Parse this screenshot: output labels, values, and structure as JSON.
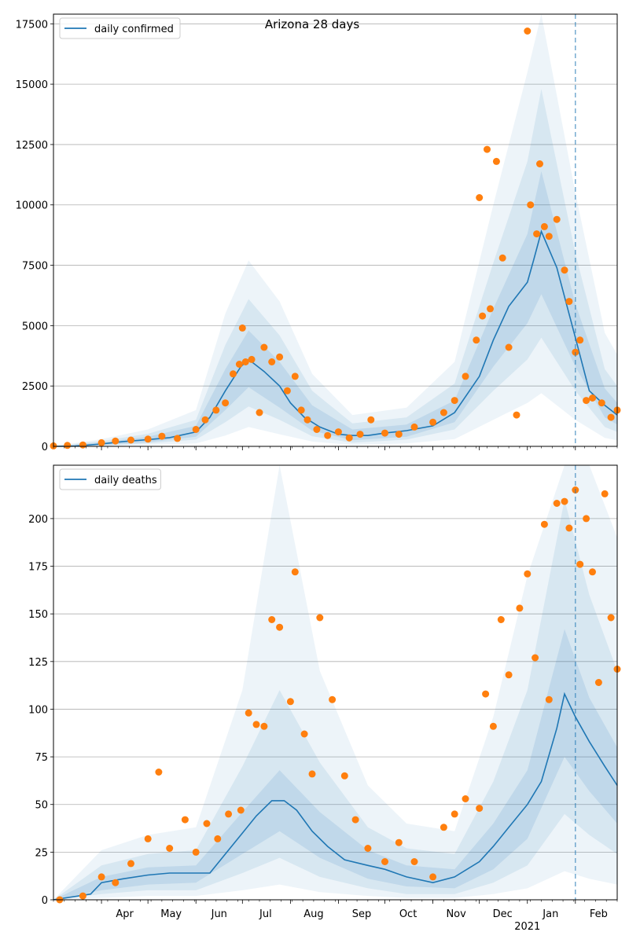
{
  "chart_data": [
    {
      "type": "line",
      "title": "Arizona 28 days",
      "xlabel": "",
      "ylabel": "",
      "ylim": [
        0,
        17900
      ],
      "yticks": [
        0,
        2500,
        5000,
        7500,
        10000,
        12500,
        15000,
        17500
      ],
      "x_range": [
        "2020-03-01",
        "2021-02-28"
      ],
      "x_tick_labels": [
        "Apr",
        "May",
        "Jun",
        "Jul",
        "Aug",
        "Sep",
        "Oct",
        "Nov",
        "Dec",
        "Jan",
        "Feb"
      ],
      "x_year_label": "2021",
      "vertical_marker": "2021-02-01",
      "grid": "horizontal",
      "legend": {
        "placement": "top-left",
        "entries": [
          "daily confirmed"
        ]
      },
      "series": [
        {
          "name": "daily confirmed",
          "kind": "line",
          "color": "#1f77b4",
          "x": [
            "2020-03-01",
            "2020-03-15",
            "2020-04-01",
            "2020-04-15",
            "2020-05-01",
            "2020-05-15",
            "2020-06-01",
            "2020-06-10",
            "2020-06-20",
            "2020-06-30",
            "2020-07-05",
            "2020-07-15",
            "2020-07-25",
            "2020-08-01",
            "2020-08-10",
            "2020-08-20",
            "2020-09-01",
            "2020-09-10",
            "2020-09-20",
            "2020-10-01",
            "2020-10-15",
            "2020-11-01",
            "2020-11-15",
            "2020-12-01",
            "2020-12-10",
            "2020-12-20",
            "2021-01-01",
            "2021-01-05",
            "2021-01-10",
            "2021-01-20",
            "2021-02-01",
            "2021-02-10",
            "2021-02-20",
            "2021-02-28"
          ],
          "y": [
            0,
            10,
            100,
            200,
            280,
            360,
            600,
            1200,
            2300,
            3300,
            3600,
            3100,
            2500,
            1800,
            1200,
            800,
            500,
            450,
            450,
            550,
            650,
            850,
            1400,
            2900,
            4400,
            5800,
            6800,
            7700,
            8900,
            7400,
            4500,
            2300,
            1700,
            1300
          ]
        },
        {
          "name": "observed daily confirmed",
          "kind": "scatter",
          "color": "#ff7f0e",
          "x": [
            "2020-03-01",
            "2020-03-10",
            "2020-03-20",
            "2020-04-01",
            "2020-04-10",
            "2020-04-20",
            "2020-05-01",
            "2020-05-10",
            "2020-05-20",
            "2020-06-01",
            "2020-06-07",
            "2020-06-14",
            "2020-06-20",
            "2020-06-25",
            "2020-06-29",
            "2020-07-01",
            "2020-07-03",
            "2020-07-07",
            "2020-07-12",
            "2020-07-15",
            "2020-07-20",
            "2020-07-25",
            "2020-07-30",
            "2020-08-04",
            "2020-08-08",
            "2020-08-12",
            "2020-08-18",
            "2020-08-25",
            "2020-09-01",
            "2020-09-08",
            "2020-09-15",
            "2020-09-22",
            "2020-10-01",
            "2020-10-10",
            "2020-10-20",
            "2020-11-01",
            "2020-11-08",
            "2020-11-15",
            "2020-11-22",
            "2020-11-29",
            "2020-12-01",
            "2020-12-03",
            "2020-12-06",
            "2020-12-08",
            "2020-12-12",
            "2020-12-16",
            "2020-12-20",
            "2020-12-25",
            "2021-01-01",
            "2021-01-03",
            "2021-01-07",
            "2021-01-09",
            "2021-01-12",
            "2021-01-15",
            "2021-01-20",
            "2021-01-25",
            "2021-01-28",
            "2021-02-01",
            "2021-02-04",
            "2021-02-08",
            "2021-02-12",
            "2021-02-18",
            "2021-02-24",
            "2021-02-28"
          ],
          "y": [
            20,
            40,
            60,
            150,
            220,
            260,
            300,
            420,
            330,
            700,
            1100,
            1500,
            1800,
            3000,
            3400,
            4900,
            3500,
            3600,
            1400,
            4100,
            3500,
            3700,
            2300,
            2900,
            1500,
            1100,
            700,
            450,
            600,
            350,
            500,
            1100,
            550,
            500,
            800,
            1000,
            1400,
            1900,
            2900,
            4400,
            10300,
            5400,
            12300,
            5700,
            11800,
            7800,
            4100,
            1300,
            17200,
            10000,
            8800,
            11700,
            9100,
            8700,
            9400,
            7300,
            6000,
            3900,
            4400,
            1900,
            2000,
            1800,
            1200,
            1500
          ]
        },
        {
          "name": "band 1",
          "kind": "band",
          "x": [
            "2020-03-01",
            "2020-04-01",
            "2020-05-01",
            "2020-06-01",
            "2020-06-20",
            "2020-07-05",
            "2020-07-25",
            "2020-08-15",
            "2020-09-10",
            "2020-10-15",
            "2020-11-15",
            "2020-12-10",
            "2021-01-01",
            "2021-01-10",
            "2021-02-01",
            "2021-02-20",
            "2021-02-28"
          ],
          "lower": [
            0,
            50,
            170,
            400,
            1500,
            2450,
            1600,
            650,
            250,
            400,
            1000,
            3300,
            5100,
            6300,
            3300,
            1200,
            900
          ],
          "upper": [
            0,
            160,
            400,
            850,
            3200,
            4800,
            3500,
            1700,
            700,
            900,
            1900,
            5700,
            8800,
            11400,
            5900,
            2400,
            1800
          ]
        },
        {
          "name": "band 2",
          "kind": "band",
          "x": [
            "2020-03-01",
            "2020-04-01",
            "2020-05-01",
            "2020-06-01",
            "2020-06-20",
            "2020-07-05",
            "2020-07-25",
            "2020-08-15",
            "2020-09-10",
            "2020-10-15",
            "2020-11-15",
            "2020-12-10",
            "2021-01-01",
            "2021-01-10",
            "2021-02-01",
            "2021-02-20",
            "2021-02-28"
          ],
          "lower": [
            0,
            30,
            120,
            280,
            1000,
            1650,
            1100,
            420,
            150,
            280,
            700,
            2300,
            3600,
            4500,
            2300,
            800,
            600
          ],
          "upper": [
            0,
            220,
            520,
            1100,
            4200,
            6100,
            4600,
            2300,
            950,
            1200,
            2600,
            7600,
            11800,
            14800,
            8000,
            3200,
            2500
          ]
        },
        {
          "name": "band 3",
          "kind": "band",
          "x": [
            "2020-03-01",
            "2020-04-01",
            "2020-05-01",
            "2020-06-01",
            "2020-06-20",
            "2020-07-05",
            "2020-07-25",
            "2020-08-15",
            "2020-09-10",
            "2020-10-15",
            "2020-11-15",
            "2020-12-10",
            "2021-01-01",
            "2021-01-10",
            "2021-02-01",
            "2021-02-20",
            "2021-02-28"
          ],
          "lower": [
            0,
            10,
            60,
            120,
            450,
            800,
            500,
            200,
            60,
            120,
            300,
            1100,
            1800,
            2200,
            1100,
            350,
            250
          ],
          "upper": [
            0,
            300,
            700,
            1500,
            5500,
            7700,
            6000,
            3000,
            1300,
            1600,
            3500,
            10000,
            15500,
            17900,
            10500,
            4700,
            3800
          ]
        }
      ]
    },
    {
      "type": "line",
      "title": "",
      "xlabel": "",
      "ylabel": "",
      "ylim": [
        0,
        228
      ],
      "yticks": [
        0,
        25,
        50,
        75,
        100,
        125,
        150,
        175,
        200
      ],
      "x_range": [
        "2020-03-01",
        "2021-02-28"
      ],
      "x_tick_labels": [
        "Apr",
        "May",
        "Jun",
        "Jul",
        "Aug",
        "Sep",
        "Oct",
        "Nov",
        "Dec",
        "Jan",
        "Feb"
      ],
      "x_year_label": "2021",
      "vertical_marker": "2021-02-01",
      "grid": "horizontal",
      "legend": {
        "placement": "top-left",
        "entries": [
          "daily deaths"
        ]
      },
      "series": [
        {
          "name": "daily deaths",
          "kind": "line",
          "color": "#1f77b4",
          "x": [
            "2020-03-01",
            "2020-03-25",
            "2020-04-01",
            "2020-04-15",
            "2020-05-01",
            "2020-05-15",
            "2020-06-01",
            "2020-06-10",
            "2020-06-20",
            "2020-07-01",
            "2020-07-10",
            "2020-07-20",
            "2020-07-28",
            "2020-08-05",
            "2020-08-15",
            "2020-08-25",
            "2020-09-05",
            "2020-09-20",
            "2020-10-01",
            "2020-10-15",
            "2020-11-01",
            "2020-11-15",
            "2020-12-01",
            "2020-12-10",
            "2020-12-20",
            "2021-01-01",
            "2021-01-10",
            "2021-01-20",
            "2021-01-25",
            "2021-02-01",
            "2021-02-10",
            "2021-02-20",
            "2021-02-28"
          ],
          "y": [
            0,
            3,
            9,
            11,
            13,
            14,
            14,
            14,
            24,
            35,
            44,
            52,
            52,
            47,
            36,
            28,
            21,
            18,
            16,
            12,
            9,
            12,
            20,
            28,
            38,
            50,
            62,
            90,
            108,
            96,
            83,
            70,
            60
          ]
        },
        {
          "name": "observed daily deaths",
          "kind": "scatter",
          "color": "#ff7f0e",
          "x": [
            "2020-03-05",
            "2020-03-20",
            "2020-04-01",
            "2020-04-10",
            "2020-04-20",
            "2020-05-01",
            "2020-05-08",
            "2020-05-15",
            "2020-05-25",
            "2020-06-01",
            "2020-06-08",
            "2020-06-15",
            "2020-06-22",
            "2020-06-30",
            "2020-07-05",
            "2020-07-10",
            "2020-07-15",
            "2020-07-20",
            "2020-07-25",
            "2020-08-01",
            "2020-08-04",
            "2020-08-10",
            "2020-08-15",
            "2020-08-20",
            "2020-08-28",
            "2020-09-05",
            "2020-09-12",
            "2020-09-20",
            "2020-10-01",
            "2020-10-10",
            "2020-10-20",
            "2020-11-01",
            "2020-11-08",
            "2020-11-15",
            "2020-11-22",
            "2020-12-01",
            "2020-12-05",
            "2020-12-10",
            "2020-12-15",
            "2020-12-20",
            "2020-12-27",
            "2021-01-01",
            "2021-01-06",
            "2021-01-12",
            "2021-01-15",
            "2021-01-20",
            "2021-01-25",
            "2021-01-28",
            "2021-02-01",
            "2021-02-04",
            "2021-02-08",
            "2021-02-12",
            "2021-02-16",
            "2021-02-20",
            "2021-02-24",
            "2021-02-28"
          ],
          "y": [
            0,
            2,
            12,
            9,
            19,
            32,
            67,
            27,
            42,
            25,
            40,
            32,
            45,
            47,
            98,
            92,
            91,
            147,
            143,
            104,
            172,
            87,
            66,
            148,
            105,
            65,
            42,
            27,
            20,
            30,
            20,
            12,
            38,
            45,
            53,
            48,
            108,
            91,
            147,
            118,
            153,
            171,
            127,
            197,
            105,
            208,
            209,
            195,
            215,
            176,
            200,
            172,
            114,
            213,
            148,
            121
          ]
        },
        {
          "name": "band 1",
          "kind": "band",
          "x": [
            "2020-03-01",
            "2020-04-01",
            "2020-05-01",
            "2020-06-01",
            "2020-07-01",
            "2020-07-25",
            "2020-08-20",
            "2020-09-20",
            "2020-10-15",
            "2020-11-15",
            "2020-12-10",
            "2021-01-01",
            "2021-01-25",
            "2021-02-10",
            "2021-02-28"
          ],
          "lower": [
            0,
            5,
            8,
            9,
            24,
            36,
            22,
            11,
            7,
            6,
            16,
            32,
            75,
            57,
            40
          ],
          "upper": [
            0,
            12,
            17,
            18,
            46,
            68,
            46,
            26,
            18,
            16,
            40,
            68,
            142,
            106,
            80
          ]
        },
        {
          "name": "band 2",
          "kind": "band",
          "x": [
            "2020-03-01",
            "2020-04-01",
            "2020-05-01",
            "2020-06-01",
            "2020-07-01",
            "2020-07-25",
            "2020-08-20",
            "2020-09-20",
            "2020-10-15",
            "2020-11-15",
            "2020-12-10",
            "2021-01-01",
            "2021-01-25",
            "2021-02-10",
            "2021-02-28"
          ],
          "lower": [
            0,
            3,
            5,
            5,
            14,
            22,
            12,
            6,
            3,
            3,
            9,
            18,
            45,
            34,
            24
          ],
          "upper": [
            0,
            18,
            24,
            26,
            70,
            110,
            72,
            38,
            27,
            24,
            62,
            110,
            210,
            160,
            120
          ]
        },
        {
          "name": "band 3",
          "kind": "band",
          "x": [
            "2020-03-01",
            "2020-04-01",
            "2020-05-01",
            "2020-06-01",
            "2020-07-01",
            "2020-07-25",
            "2020-08-20",
            "2020-09-20",
            "2020-10-15",
            "2020-11-15",
            "2020-12-10",
            "2021-01-01",
            "2021-01-25",
            "2021-02-10",
            "2021-02-28"
          ],
          "lower": [
            0,
            1,
            2,
            2,
            5,
            8,
            4,
            2,
            1,
            1,
            3,
            6,
            15,
            11,
            8
          ],
          "upper": [
            0,
            26,
            34,
            38,
            110,
            228,
            120,
            60,
            40,
            36,
            96,
            170,
            228,
            228,
            190
          ]
        }
      ]
    }
  ]
}
